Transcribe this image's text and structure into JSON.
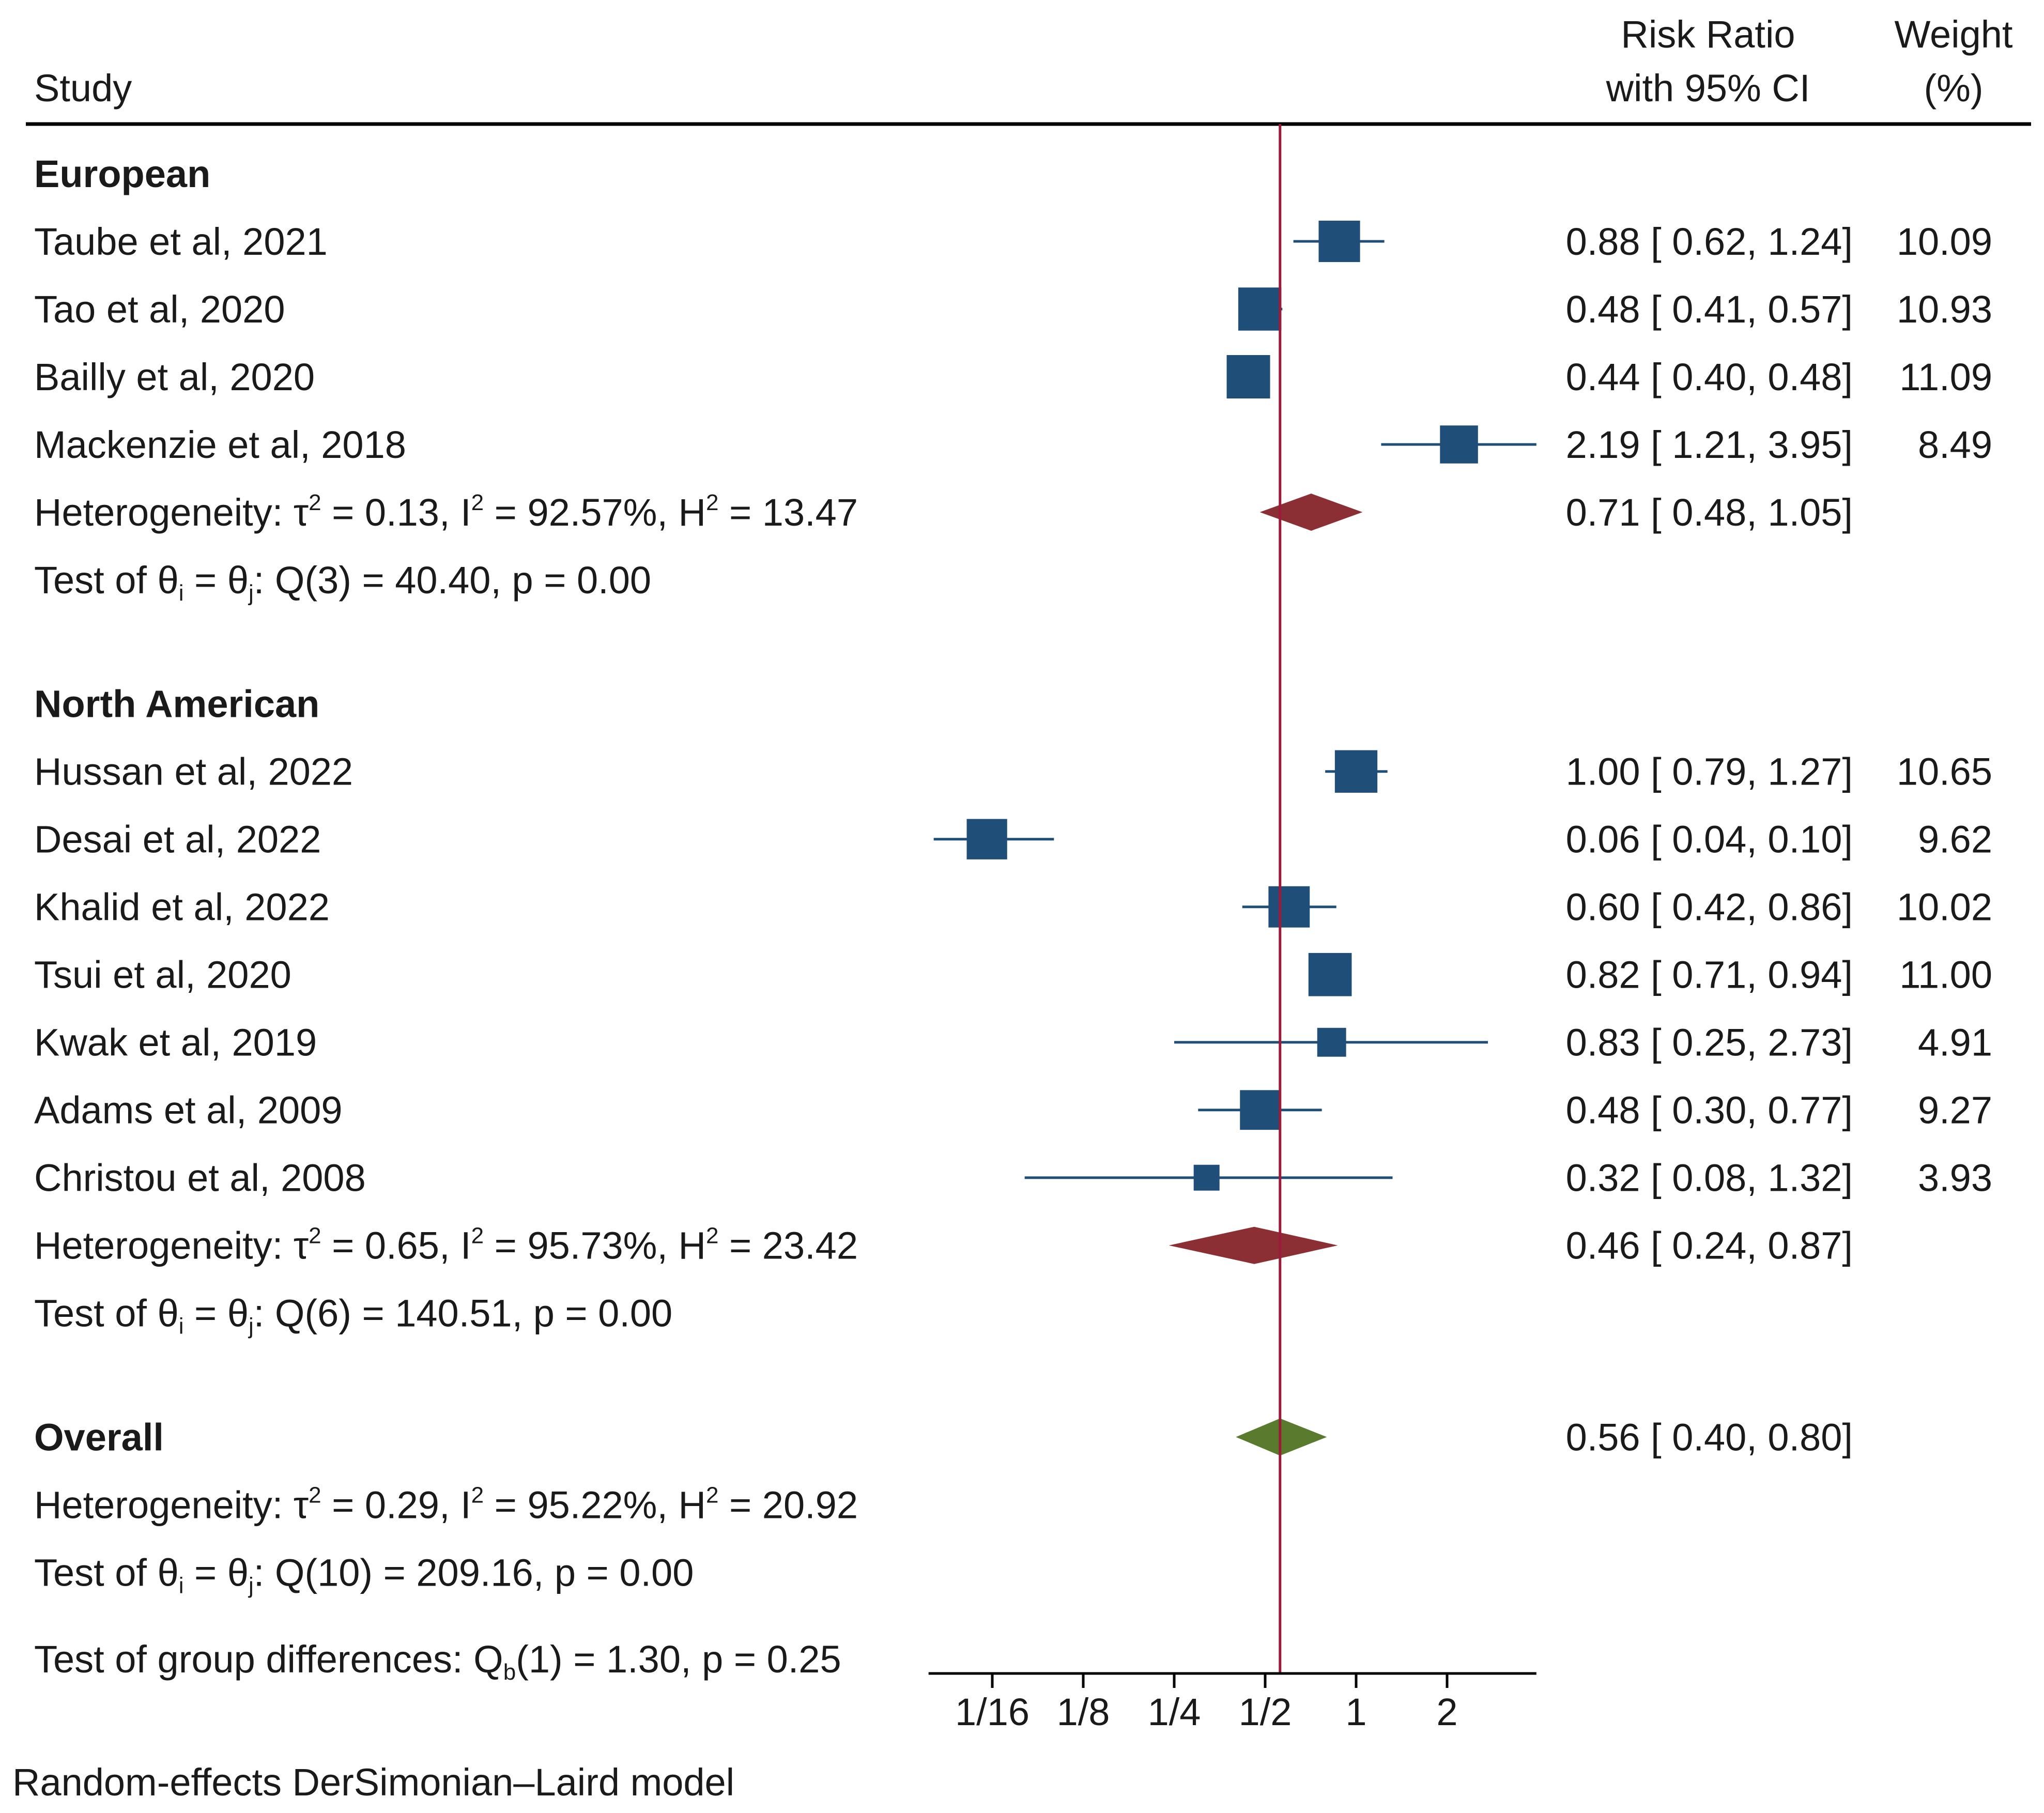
{
  "chart_data": {
    "type": "forest",
    "header": {
      "study": "Study",
      "rr_line1": "Risk Ratio",
      "rr_line2": "with 95% CI",
      "weight_line1": "Weight",
      "weight_line2": "(%)"
    },
    "scale": "log2",
    "xlim": [
      0.04,
      3.95
    ],
    "reference_value": 0.56,
    "ticks": [
      {
        "value": 0.0625,
        "label": "1/16"
      },
      {
        "value": 0.125,
        "label": "1/8"
      },
      {
        "value": 0.25,
        "label": "1/4"
      },
      {
        "value": 0.5,
        "label": "1/2"
      },
      {
        "value": 1,
        "label": "1"
      },
      {
        "value": 2,
        "label": "2"
      }
    ],
    "groups": [
      {
        "name": "European",
        "studies": [
          {
            "label": "Taube et al, 2021",
            "rr": 0.88,
            "lo": 0.62,
            "hi": 1.24,
            "ci_text": "0.88 [ 0.62,  1.24]",
            "weight": 10.09,
            "weight_text": "10.09"
          },
          {
            "label": "Tao et al, 2020",
            "rr": 0.48,
            "lo": 0.41,
            "hi": 0.57,
            "ci_text": "0.48 [ 0.41,  0.57]",
            "weight": 10.93,
            "weight_text": "10.93"
          },
          {
            "label": "Bailly et al, 2020",
            "rr": 0.44,
            "lo": 0.4,
            "hi": 0.48,
            "ci_text": "0.44 [ 0.40,  0.48]",
            "weight": 11.09,
            "weight_text": "11.09"
          },
          {
            "label": "Mackenzie et al, 2018",
            "rr": 2.19,
            "lo": 1.21,
            "hi": 3.95,
            "ci_text": "2.19 [ 1.21,  3.95]",
            "weight": 8.49,
            "weight_text": "8.49"
          }
        ],
        "pooled": {
          "rr": 0.71,
          "lo": 0.48,
          "hi": 1.05,
          "ci_text": "0.71 [ 0.48,  1.05]"
        },
        "heterogeneity": {
          "prefix": "Heterogeneity: ",
          "tau_part": " = 0.13, I",
          "i_part": " = 92.57%, H",
          "h_part": " = 13.47"
        },
        "test": {
          "prefix": "Test of ",
          "rest": ": Q(3) = 40.40, p = 0.00"
        }
      },
      {
        "name": "North American",
        "studies": [
          {
            "label": "Hussan et al, 2022",
            "rr": 1.0,
            "lo": 0.79,
            "hi": 1.27,
            "ci_text": "1.00 [ 0.79,  1.27]",
            "weight": 10.65,
            "weight_text": "10.65"
          },
          {
            "label": "Desai et al, 2022",
            "rr": 0.06,
            "lo": 0.04,
            "hi": 0.1,
            "ci_text": "0.06 [ 0.04,  0.10]",
            "weight": 9.62,
            "weight_text": "9.62"
          },
          {
            "label": "Khalid et al, 2022",
            "rr": 0.6,
            "lo": 0.42,
            "hi": 0.86,
            "ci_text": "0.60 [ 0.42,  0.86]",
            "weight": 10.02,
            "weight_text": "10.02"
          },
          {
            "label": "Tsui et al, 2020",
            "rr": 0.82,
            "lo": 0.71,
            "hi": 0.94,
            "ci_text": "0.82 [ 0.71,  0.94]",
            "weight": 11.0,
            "weight_text": "11.00"
          },
          {
            "label": "Kwak et al, 2019",
            "rr": 0.83,
            "lo": 0.25,
            "hi": 2.73,
            "ci_text": "0.83 [ 0.25,  2.73]",
            "weight": 4.91,
            "weight_text": "4.91"
          },
          {
            "label": "Adams et al, 2009",
            "rr": 0.48,
            "lo": 0.3,
            "hi": 0.77,
            "ci_text": "0.48 [ 0.30,  0.77]",
            "weight": 9.27,
            "weight_text": "9.27"
          },
          {
            "label": "Christou et al, 2008",
            "rr": 0.32,
            "lo": 0.08,
            "hi": 1.32,
            "ci_text": "0.32 [ 0.08,  1.32]",
            "weight": 3.93,
            "weight_text": "3.93"
          }
        ],
        "pooled": {
          "rr": 0.46,
          "lo": 0.24,
          "hi": 0.87,
          "ci_text": "0.46 [ 0.24,  0.87]"
        },
        "heterogeneity": {
          "prefix": "Heterogeneity: ",
          "tau_part": " = 0.65, I",
          "i_part": " = 95.73%, H",
          "h_part": " = 23.42"
        },
        "test": {
          "prefix": "Test of ",
          "rest": ": Q(6) = 140.51, p = 0.00"
        }
      }
    ],
    "overall": {
      "name": "Overall",
      "rr": 0.56,
      "lo": 0.4,
      "hi": 0.8,
      "ci_text": "0.56 [ 0.40,  0.80]",
      "heterogeneity": {
        "prefix": "Heterogeneity: ",
        "tau_part": " = 0.29, I",
        "i_part": " = 95.22%, H",
        "h_part": " = 20.92"
      },
      "test": {
        "prefix": "Test of ",
        "rest": ": Q(10) = 209.16, p = 0.00"
      },
      "group_test": {
        "prefix": "Test of group differences: Q",
        "sub": "b",
        "rest": "(1) = 1.30, p = 0.25"
      }
    },
    "footnote": "Random-effects DerSimonian–Laird model",
    "colors": {
      "study_marker": "#1f4e79",
      "ci_line": "#1f4e79",
      "group_diamond": "#8b2f35",
      "overall_diamond": "#5a7a2e",
      "reference_line": "#9b1b3a",
      "text": "#1a1a1a"
    }
  }
}
